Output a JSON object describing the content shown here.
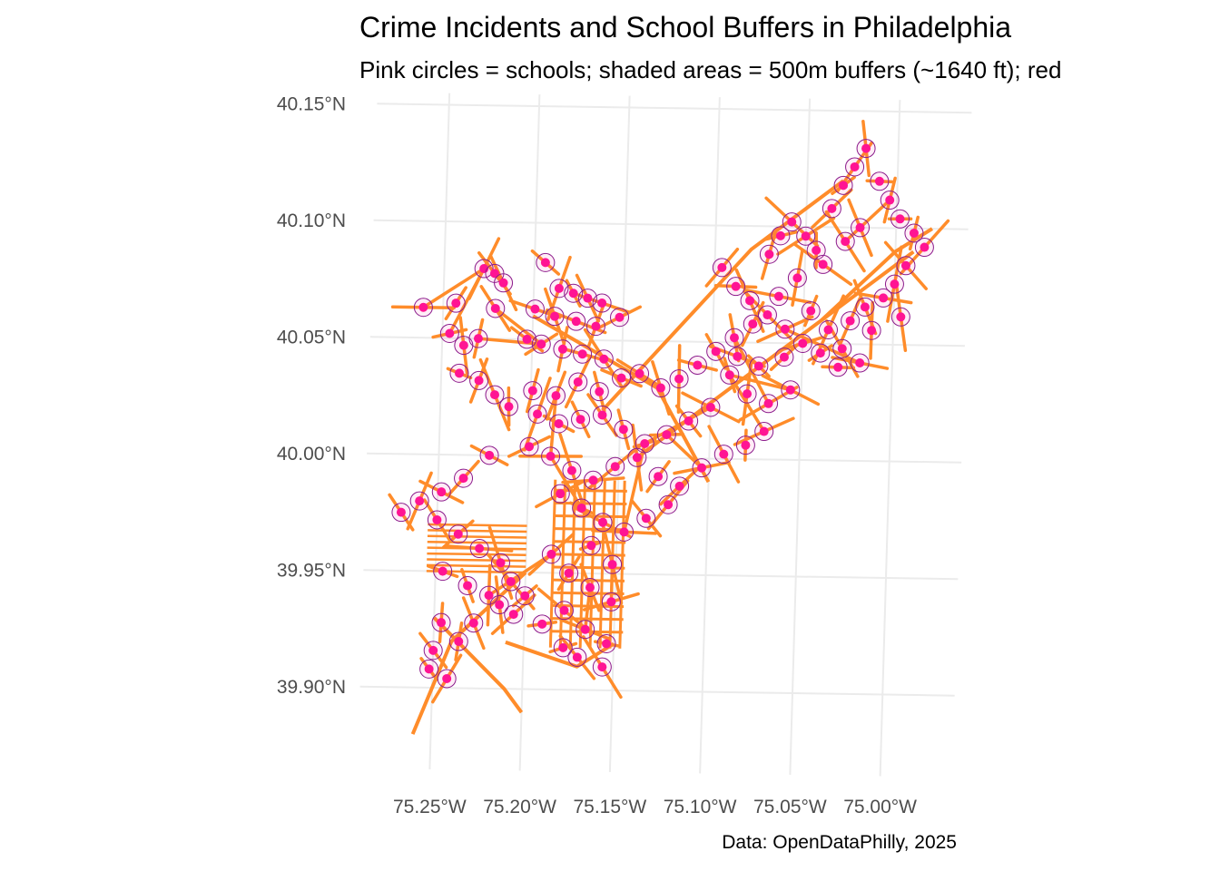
{
  "title": "Crime Incidents and School Buffers in Philadelphia",
  "subtitle": "Pink circles = schools; shaded areas = 500m buffers (~1640 ft); red",
  "caption": "Data: OpenDataPhilly, 2025",
  "colors": {
    "school": "#ff1493",
    "buffer_stroke": "#8b1a8b",
    "crime": "#ff8c2a",
    "grid": "#ebebeb",
    "axis_text": "#4d4d4d"
  },
  "chart_data": {
    "type": "map",
    "projection": "latitude/longitude graticule, slightly rotated",
    "xlim": [
      -75.28,
      -74.96
    ],
    "ylim": [
      39.87,
      40.15
    ],
    "lat_ticks": [
      {
        "value": 40.15,
        "label": "40.15°N"
      },
      {
        "value": 40.1,
        "label": "40.10°N"
      },
      {
        "value": 40.05,
        "label": "40.05°N"
      },
      {
        "value": 40.0,
        "label": "40.00°N"
      },
      {
        "value": 39.95,
        "label": "39.95°N"
      },
      {
        "value": 39.9,
        "label": "39.90°N"
      }
    ],
    "lon_ticks": [
      {
        "value": -75.25,
        "label": "75.25°W"
      },
      {
        "value": -75.2,
        "label": "75.20°W"
      },
      {
        "value": -75.15,
        "label": "75.15°W"
      },
      {
        "value": -75.1,
        "label": "75.10°W"
      },
      {
        "value": -75.05,
        "label": "75.05°W"
      },
      {
        "value": -75.0,
        "label": "75.00°W"
      }
    ],
    "layers": [
      {
        "name": "schools",
        "symbol": "pink filled circle"
      },
      {
        "name": "500m buffers",
        "symbol": "shaded circle outline"
      },
      {
        "name": "crime incidents",
        "symbol": "orange street segments"
      }
    ],
    "schools": [
      [
        -75.261,
        40.063
      ],
      [
        -75.243,
        40.065
      ],
      [
        -75.221,
        40.063
      ],
      [
        -75.228,
        40.08
      ],
      [
        -75.222,
        40.078
      ],
      [
        -75.217,
        40.074
      ],
      [
        -75.194,
        40.083
      ],
      [
        -75.186,
        40.072
      ],
      [
        -75.178,
        40.07
      ],
      [
        -75.17,
        40.068
      ],
      [
        -75.162,
        40.066
      ],
      [
        -75.152,
        40.06
      ],
      [
        -75.199,
        40.063
      ],
      [
        -75.188,
        40.06
      ],
      [
        -75.176,
        40.058
      ],
      [
        -75.165,
        40.056
      ],
      [
        -75.203,
        40.05
      ],
      [
        -75.195,
        40.048
      ],
      [
        -75.183,
        40.046
      ],
      [
        -75.172,
        40.044
      ],
      [
        -75.16,
        40.042
      ],
      [
        -75.246,
        40.052
      ],
      [
        -75.238,
        40.047
      ],
      [
        -75.23,
        40.05
      ],
      [
        -75.24,
        40.035
      ],
      [
        -75.229,
        40.032
      ],
      [
        -75.22,
        40.026
      ],
      [
        -75.212,
        40.021
      ],
      [
        -75.199,
        40.028
      ],
      [
        -75.186,
        40.026
      ],
      [
        -75.174,
        40.032
      ],
      [
        -75.162,
        40.028
      ],
      [
        -75.15,
        40.034
      ],
      [
        -75.14,
        40.036
      ],
      [
        -75.128,
        40.03
      ],
      [
        -75.118,
        40.034
      ],
      [
        -75.108,
        40.04
      ],
      [
        -75.098,
        40.046
      ],
      [
        -75.088,
        40.052
      ],
      [
        -75.078,
        40.058
      ],
      [
        -75.07,
        40.062
      ],
      [
        -75.06,
        40.056
      ],
      [
        -75.05,
        40.05
      ],
      [
        -75.04,
        40.046
      ],
      [
        -75.03,
        40.04
      ],
      [
        -75.09,
        40.036
      ],
      [
        -75.08,
        40.028
      ],
      [
        -75.068,
        40.024
      ],
      [
        -75.056,
        40.03
      ],
      [
        -75.1,
        40.022
      ],
      [
        -75.112,
        40.016
      ],
      [
        -75.124,
        40.01
      ],
      [
        -75.136,
        40.006
      ],
      [
        -75.148,
        40.012
      ],
      [
        -75.16,
        40.018
      ],
      [
        -75.172,
        40.016
      ],
      [
        -75.184,
        40.014
      ],
      [
        -75.196,
        40.018
      ],
      [
        -75.2,
        40.004
      ],
      [
        -75.188,
        40.0
      ],
      [
        -75.176,
        39.994
      ],
      [
        -75.164,
        39.99
      ],
      [
        -75.152,
        39.996
      ],
      [
        -75.14,
        40.0
      ],
      [
        -75.128,
        39.992
      ],
      [
        -75.116,
        39.988
      ],
      [
        -75.104,
        39.996
      ],
      [
        -75.092,
        40.002
      ],
      [
        -75.08,
        40.006
      ],
      [
        -75.07,
        40.012
      ],
      [
        -75.182,
        39.984
      ],
      [
        -75.17,
        39.978
      ],
      [
        -75.158,
        39.972
      ],
      [
        -75.146,
        39.968
      ],
      [
        -75.134,
        39.974
      ],
      [
        -75.122,
        39.98
      ],
      [
        -75.222,
        40.0
      ],
      [
        -75.236,
        39.99
      ],
      [
        -75.248,
        39.984
      ],
      [
        -75.26,
        39.98
      ],
      [
        -75.27,
        39.975
      ],
      [
        -75.25,
        39.972
      ],
      [
        -75.238,
        39.966
      ],
      [
        -75.226,
        39.96
      ],
      [
        -75.214,
        39.954
      ],
      [
        -75.246,
        39.95
      ],
      [
        -75.232,
        39.944
      ],
      [
        -75.22,
        39.94
      ],
      [
        -75.208,
        39.946
      ],
      [
        -75.246,
        39.928
      ],
      [
        -75.236,
        39.92
      ],
      [
        -75.228,
        39.928
      ],
      [
        -75.214,
        39.936
      ],
      [
        -75.25,
        39.916
      ],
      [
        -75.252,
        39.908
      ],
      [
        -75.242,
        39.904
      ],
      [
        -75.186,
        39.958
      ],
      [
        -75.176,
        39.95
      ],
      [
        -75.164,
        39.944
      ],
      [
        -75.152,
        39.938
      ],
      [
        -75.178,
        39.934
      ],
      [
        -75.166,
        39.926
      ],
      [
        -75.154,
        39.92
      ],
      [
        -75.17,
        39.914
      ],
      [
        -75.156,
        39.91
      ],
      [
        -75.19,
        39.928
      ],
      [
        -75.178,
        39.918
      ],
      [
        -75.164,
        39.962
      ],
      [
        -75.152,
        39.954
      ],
      [
        -75.2,
        39.94
      ],
      [
        -75.206,
        39.932
      ],
      [
        -75.096,
        40.082
      ],
      [
        -75.088,
        40.074
      ],
      [
        -75.08,
        40.068
      ],
      [
        -75.07,
        40.088
      ],
      [
        -75.064,
        40.096
      ],
      [
        -75.058,
        40.102
      ],
      [
        -75.05,
        40.096
      ],
      [
        -75.044,
        40.09
      ],
      [
        -75.036,
        40.108
      ],
      [
        -75.03,
        40.118
      ],
      [
        -75.024,
        40.126
      ],
      [
        -75.018,
        40.134
      ],
      [
        -75.01,
        40.12
      ],
      [
        -75.004,
        40.112
      ],
      [
        -74.998,
        40.104
      ],
      [
        -74.99,
        40.098
      ],
      [
        -74.984,
        40.092
      ],
      [
        -74.994,
        40.084
      ],
      [
        -75.0,
        40.076
      ],
      [
        -75.006,
        40.07
      ],
      [
        -75.016,
        40.066
      ],
      [
        -75.024,
        40.06
      ],
      [
        -75.012,
        40.056
      ],
      [
        -74.996,
        40.062
      ],
      [
        -75.02,
        40.1
      ],
      [
        -75.028,
        40.094
      ],
      [
        -75.04,
        40.084
      ],
      [
        -75.054,
        40.078
      ],
      [
        -75.064,
        40.07
      ],
      [
        -75.046,
        40.064
      ],
      [
        -75.036,
        40.056
      ],
      [
        -75.028,
        40.048
      ],
      [
        -75.018,
        40.042
      ],
      [
        -75.06,
        40.044
      ],
      [
        -75.074,
        40.04
      ],
      [
        -75.086,
        40.044
      ]
    ]
  }
}
